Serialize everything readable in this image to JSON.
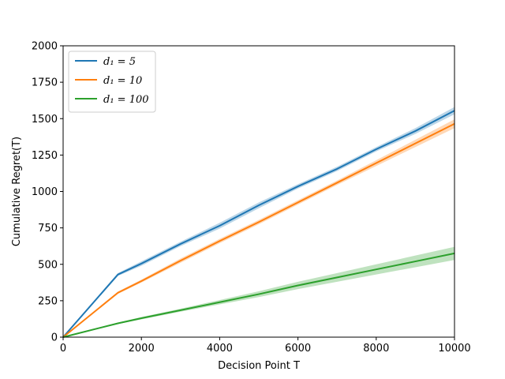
{
  "chart_data": {
    "type": "line",
    "title": "",
    "xlabel": "Decision Point T",
    "ylabel": "Cumulative  Regret(T)",
    "xlim": [
      0,
      10000
    ],
    "ylim": [
      0,
      2000
    ],
    "xticks": [
      0,
      2000,
      4000,
      6000,
      8000,
      10000
    ],
    "yticks": [
      0,
      250,
      500,
      750,
      1000,
      1250,
      1500,
      1750,
      2000
    ],
    "grid": false,
    "legend_position": "upper-left",
    "series": [
      {
        "name": "d₁ = 5",
        "color": "#1f77b4",
        "x": [
          0,
          1400,
          2000,
          3000,
          4000,
          5000,
          6000,
          7000,
          8000,
          9000,
          10000
        ],
        "y": [
          0,
          430,
          505,
          640,
          765,
          905,
          1035,
          1155,
          1290,
          1415,
          1555
        ],
        "band_width": [
          0,
          10,
          15,
          15,
          20,
          20,
          15,
          15,
          15,
          20,
          25
        ]
      },
      {
        "name": "d₁ = 10",
        "color": "#ff7f0e",
        "x": [
          0,
          1400,
          2000,
          3000,
          4000,
          5000,
          6000,
          7000,
          8000,
          9000,
          10000
        ],
        "y": [
          0,
          305,
          385,
          525,
          660,
          790,
          925,
          1060,
          1195,
          1330,
          1465
        ],
        "band_width": [
          0,
          8,
          10,
          15,
          15,
          15,
          15,
          15,
          20,
          25,
          30
        ]
      },
      {
        "name": "d₁ = 100",
        "color": "#2ca02c",
        "x": [
          0,
          1400,
          2000,
          3000,
          4000,
          5000,
          6000,
          7000,
          8000,
          9000,
          10000
        ],
        "y": [
          0,
          95,
          130,
          185,
          240,
          295,
          355,
          410,
          465,
          520,
          575
        ],
        "band_width": [
          0,
          5,
          8,
          10,
          15,
          20,
          25,
          30,
          35,
          40,
          45
        ]
      }
    ]
  }
}
